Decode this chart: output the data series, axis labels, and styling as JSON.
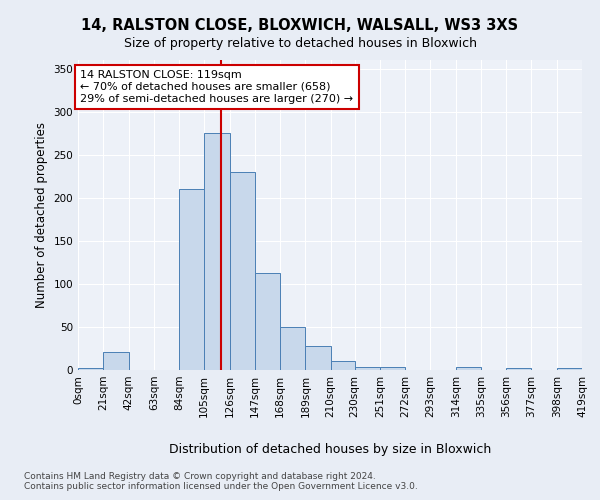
{
  "title": "14, RALSTON CLOSE, BLOXWICH, WALSALL, WS3 3XS",
  "subtitle": "Size of property relative to detached houses in Bloxwich",
  "xlabel": "Distribution of detached houses by size in Bloxwich",
  "ylabel": "Number of detached properties",
  "bin_edges": [
    0,
    21,
    42,
    63,
    84,
    105,
    126,
    147,
    168,
    189,
    210,
    230,
    251,
    272,
    293,
    314,
    335,
    356,
    377,
    398,
    419
  ],
  "bar_heights": [
    2,
    21,
    0,
    0,
    210,
    275,
    230,
    113,
    50,
    28,
    10,
    4,
    4,
    0,
    0,
    3,
    0,
    2,
    0,
    2
  ],
  "bar_color": "#c8d8eb",
  "bar_edge_color": "#4a7fb5",
  "property_size": 119,
  "vline_color": "#cc0000",
  "annotation_text": "14 RALSTON CLOSE: 119sqm\n← 70% of detached houses are smaller (658)\n29% of semi-detached houses are larger (270) →",
  "annotation_box_color": "#ffffff",
  "annotation_box_edge_color": "#cc0000",
  "ylim": [
    0,
    360
  ],
  "yticks": [
    0,
    50,
    100,
    150,
    200,
    250,
    300,
    350
  ],
  "footer_line1": "Contains HM Land Registry data © Crown copyright and database right 2024.",
  "footer_line2": "Contains public sector information licensed under the Open Government Licence v3.0.",
  "background_color": "#e8edf5",
  "plot_background_color": "#edf1f8",
  "grid_color": "#ffffff",
  "title_fontsize": 10.5,
  "subtitle_fontsize": 9,
  "ylabel_fontsize": 8.5,
  "xlabel_fontsize": 9,
  "annotation_fontsize": 8,
  "tick_fontsize": 7.5,
  "footer_fontsize": 6.5
}
